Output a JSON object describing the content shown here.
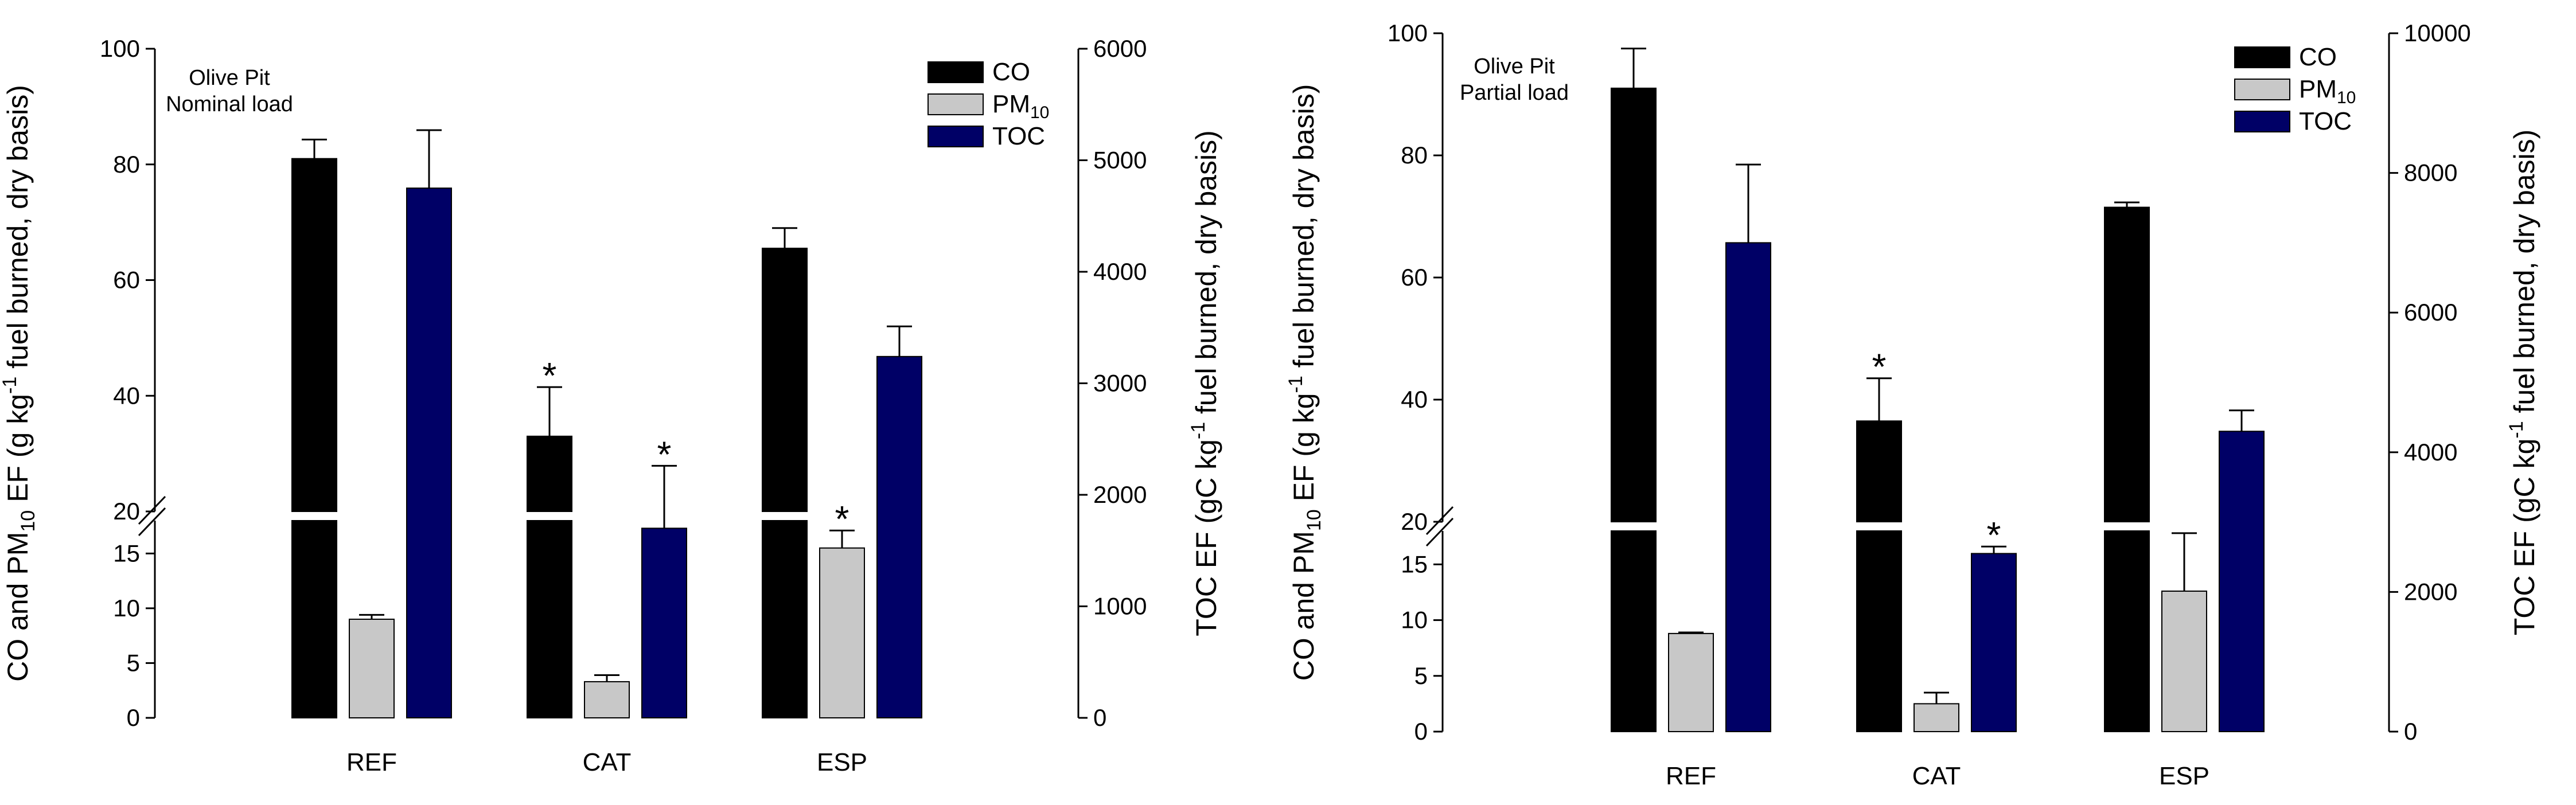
{
  "series_colors": {
    "CO": "#000000",
    "PM10": "#c8c8c8",
    "TOC": "#000066"
  },
  "chart_data": [
    {
      "type": "bar",
      "id": "nominal",
      "annotation": [
        "Olive Pit",
        "Nominal load"
      ],
      "categories": [
        "REF",
        "CAT",
        "ESP"
      ],
      "ylabel": {
        "pre": "CO and PM",
        "sub": "10",
        "mid": " EF (g kg",
        "sup": "-1",
        "post": " fuel burned, dry basis)"
      },
      "y2label": {
        "pre": "TOC EF (gC kg",
        "sup": "-1",
        "post": " fuel burned, dry basis)"
      },
      "ylim_lower": [
        0,
        18
      ],
      "ylim_upper": [
        20,
        100
      ],
      "yticks_lower": [
        0,
        5,
        10,
        15
      ],
      "yticks_upper": [
        20,
        40,
        60,
        80,
        100
      ],
      "y2lim": [
        0,
        6000
      ],
      "y2ticks": [
        0,
        1000,
        2000,
        3000,
        4000,
        5000,
        6000
      ],
      "legend": [
        {
          "key": "CO",
          "label": "CO"
        },
        {
          "key": "PM10",
          "label": "PM",
          "sub": "10"
        },
        {
          "key": "TOC",
          "label": "TOC"
        }
      ],
      "series": [
        {
          "name": "CO",
          "axis": "left",
          "values": [
            81,
            33,
            65.5
          ],
          "errors": [
            3.3,
            8.5,
            3.5
          ],
          "stars": [
            false,
            true,
            false
          ]
        },
        {
          "name": "PM10",
          "axis": "left",
          "values": [
            9,
            3.3,
            15.5
          ],
          "errors": [
            0.4,
            0.6,
            1.6
          ],
          "stars": [
            false,
            false,
            true
          ]
        },
        {
          "name": "TOC",
          "axis": "right",
          "values": [
            4750,
            1700,
            3240
          ],
          "errors": [
            520,
            560,
            270
          ],
          "stars": [
            false,
            true,
            false
          ]
        }
      ]
    },
    {
      "type": "bar",
      "id": "partial",
      "annotation": [
        "Olive Pit",
        "Partial load"
      ],
      "categories": [
        "REF",
        "CAT",
        "ESP"
      ],
      "ylabel": {
        "pre": "CO and PM",
        "sub": "10",
        "mid": " EF (g kg",
        "sup": "-1",
        "post": " fuel burned, dry basis)"
      },
      "y2label": {
        "pre": "TOC EF (gC kg",
        "sup": "-1",
        "post": " fuel burned, dry basis)"
      },
      "ylim_lower": [
        0,
        18
      ],
      "ylim_upper": [
        20,
        100
      ],
      "yticks_lower": [
        0,
        5,
        10,
        15
      ],
      "yticks_upper": [
        20,
        40,
        60,
        80,
        100
      ],
      "y2lim": [
        0,
        10000
      ],
      "y2ticks": [
        0,
        2000,
        4000,
        6000,
        8000,
        10000
      ],
      "legend": [
        {
          "key": "CO",
          "label": "CO"
        },
        {
          "key": "PM10",
          "label": "PM",
          "sub": "10"
        },
        {
          "key": "TOC",
          "label": "TOC"
        }
      ],
      "series": [
        {
          "name": "CO",
          "axis": "left",
          "values": [
            91,
            36.5,
            71.5
          ],
          "errors": [
            6.5,
            7,
            0.8
          ],
          "stars": [
            false,
            true,
            false
          ]
        },
        {
          "name": "PM10",
          "axis": "left",
          "values": [
            8.8,
            2.5,
            12.6
          ],
          "errors": [
            0.1,
            1,
            5.2
          ],
          "stars": [
            false,
            false,
            false
          ]
        },
        {
          "name": "TOC",
          "axis": "right",
          "values": [
            7000,
            2550,
            4300
          ],
          "errors": [
            1120,
            100,
            300
          ],
          "stars": [
            false,
            true,
            false
          ]
        }
      ]
    }
  ]
}
